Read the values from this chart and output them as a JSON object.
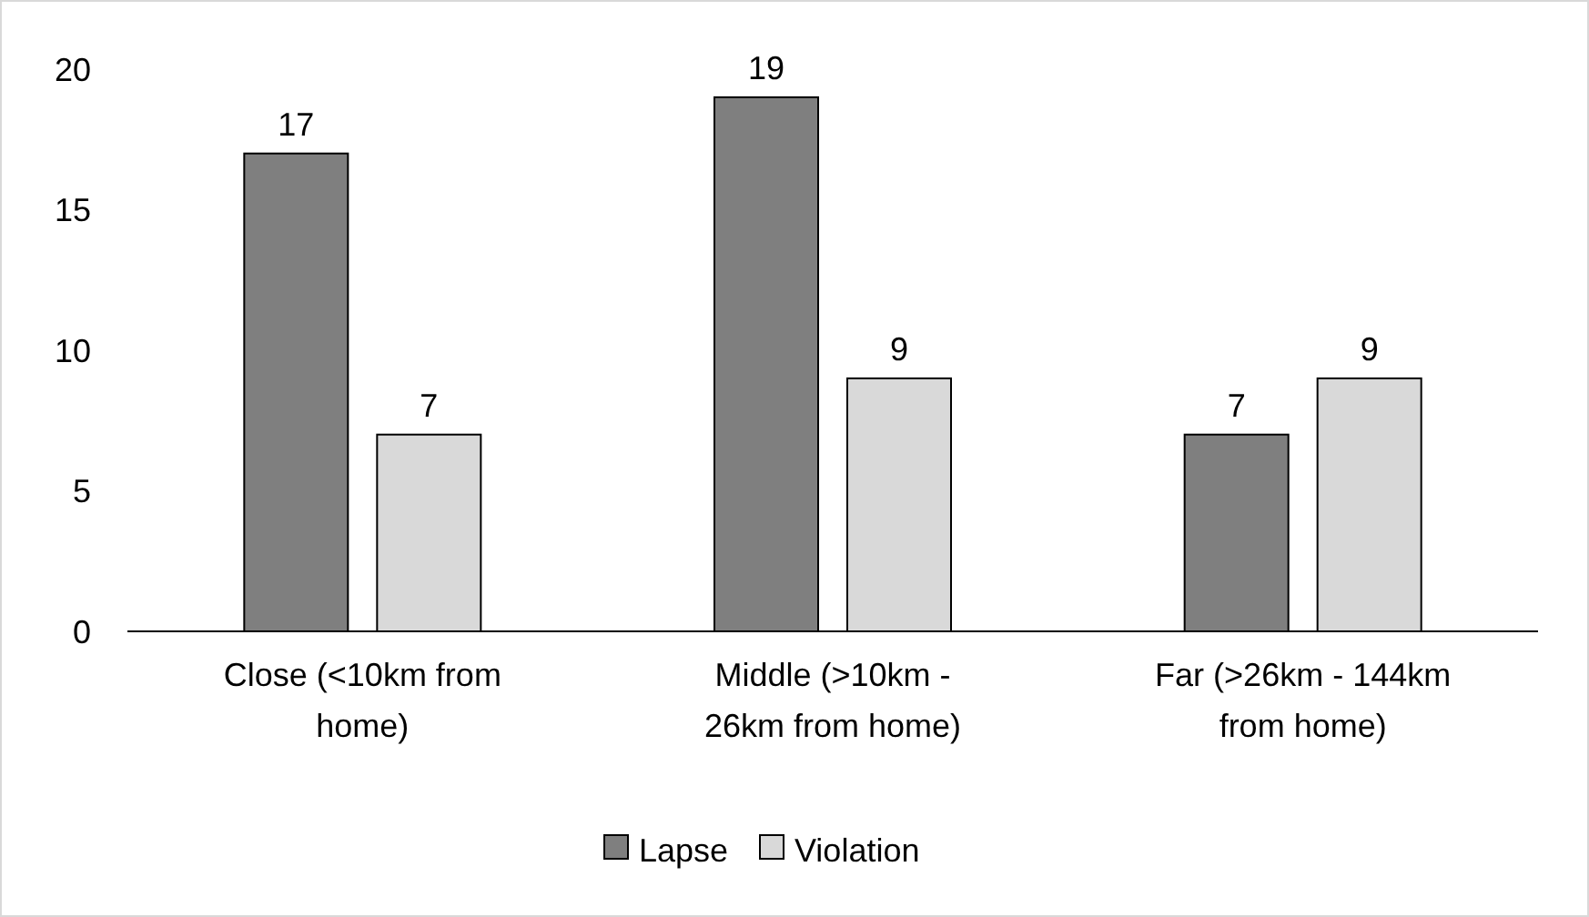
{
  "chart_data": {
    "type": "bar",
    "categories": [
      "Close (<10km from home)",
      "Middle (>10km - 26km from home)",
      "Far (>26km - 144km from home)"
    ],
    "series": [
      {
        "name": "Lapse",
        "color": "#7f7f7f",
        "values": [
          17,
          19,
          7
        ]
      },
      {
        "name": "Violation",
        "color": "#d9d9d9",
        "values": [
          7,
          9,
          9
        ]
      }
    ],
    "ylim": [
      0,
      20
    ],
    "yticks": [
      0,
      5,
      10,
      15,
      20
    ],
    "grid": false,
    "legend": "bottom",
    "data_labels": true
  }
}
